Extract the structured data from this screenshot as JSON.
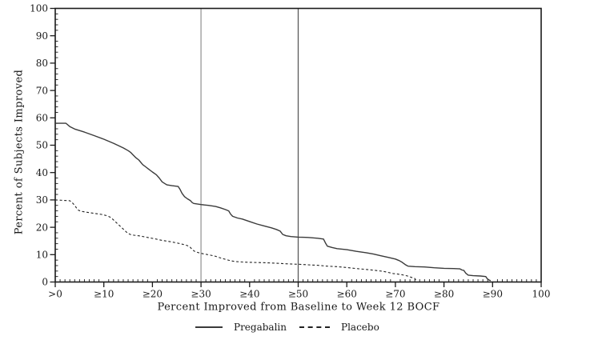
{
  "chart_data": {
    "type": "line",
    "title": "",
    "xlabel": "Percent Improved from Baseline to Week 12 BOCF",
    "ylabel": "Percent of Subjects Improved",
    "xlim": [
      0,
      100
    ],
    "ylim": [
      0,
      100
    ],
    "grid": false,
    "legend_position": "bottom",
    "x_minor_step": 1,
    "y_minor_step": 2,
    "axis_color": "#1a1a1a",
    "x_ticks": [
      {
        "value": 0,
        "label": ">0"
      },
      {
        "value": 10,
        "label": "≥10"
      },
      {
        "value": 20,
        "label": "≥20"
      },
      {
        "value": 30,
        "label": "≥30"
      },
      {
        "value": 40,
        "label": "≥40"
      },
      {
        "value": 50,
        "label": "≥50"
      },
      {
        "value": 60,
        "label": "≥60"
      },
      {
        "value": 70,
        "label": "≥70"
      },
      {
        "value": 80,
        "label": "≥80"
      },
      {
        "value": 90,
        "label": "≥90"
      },
      {
        "value": 100,
        "label": "100"
      }
    ],
    "y_ticks": [
      {
        "value": 0,
        "label": "0"
      },
      {
        "value": 10,
        "label": "10"
      },
      {
        "value": 20,
        "label": "20"
      },
      {
        "value": 30,
        "label": "30"
      },
      {
        "value": 40,
        "label": "40"
      },
      {
        "value": 50,
        "label": "50"
      },
      {
        "value": 60,
        "label": "60"
      },
      {
        "value": 70,
        "label": "70"
      },
      {
        "value": 80,
        "label": "80"
      },
      {
        "value": 90,
        "label": "90"
      },
      {
        "value": 100,
        "label": "100"
      }
    ],
    "reference_lines": [
      {
        "x": 30,
        "color": "#a6a6a6",
        "width": 1.5
      },
      {
        "x": 50,
        "color": "#5a5a5a",
        "width": 1.3
      }
    ],
    "series": [
      {
        "name": "Pregabalin",
        "style": "solid",
        "color": "#3a3a3a",
        "width": 1.4,
        "dash": "",
        "points": [
          [
            0,
            58
          ],
          [
            2.2,
            58
          ],
          [
            3,
            56.8
          ],
          [
            4,
            55.9
          ],
          [
            6,
            54.8
          ],
          [
            8,
            53.5
          ],
          [
            10,
            52.2
          ],
          [
            12,
            50.7
          ],
          [
            14,
            49
          ],
          [
            15,
            48
          ],
          [
            15.5,
            47.4
          ],
          [
            16,
            46.5
          ],
          [
            16.6,
            45.4
          ],
          [
            17.2,
            44.6
          ],
          [
            18,
            42.9
          ],
          [
            18.6,
            42.1
          ],
          [
            19.2,
            41.3
          ],
          [
            20,
            40.2
          ],
          [
            20.8,
            39.2
          ],
          [
            21.4,
            38
          ],
          [
            22,
            36.6
          ],
          [
            22.6,
            35.9
          ],
          [
            23,
            35.5
          ],
          [
            24,
            35.2
          ],
          [
            25.3,
            34.9
          ],
          [
            25.7,
            33.8
          ],
          [
            26.1,
            32.4
          ],
          [
            26.6,
            31.2
          ],
          [
            27.2,
            30.4
          ],
          [
            27.8,
            29.8
          ],
          [
            28.2,
            29
          ],
          [
            28.5,
            28.7
          ],
          [
            30,
            28.3
          ],
          [
            31.5,
            28
          ],
          [
            33,
            27.6
          ],
          [
            34,
            27.1
          ],
          [
            35,
            26.5
          ],
          [
            35.7,
            26
          ],
          [
            36.1,
            24.8
          ],
          [
            36.5,
            24
          ],
          [
            37.5,
            23.4
          ],
          [
            38.5,
            23
          ],
          [
            40,
            22.1
          ],
          [
            41.5,
            21.2
          ],
          [
            43,
            20.5
          ],
          [
            44.5,
            19.8
          ],
          [
            45.5,
            19.2
          ],
          [
            46.3,
            18.6
          ],
          [
            46.8,
            17.4
          ],
          [
            47.5,
            16.9
          ],
          [
            48.5,
            16.6
          ],
          [
            50,
            16.4
          ],
          [
            52,
            16.3
          ],
          [
            54,
            16
          ],
          [
            55.2,
            15.7
          ],
          [
            55.6,
            14.3
          ],
          [
            56,
            13.1
          ],
          [
            57,
            12.6
          ],
          [
            58,
            12.2
          ],
          [
            60,
            11.8
          ],
          [
            62,
            11.2
          ],
          [
            64,
            10.7
          ],
          [
            65.5,
            10.2
          ],
          [
            67,
            9.6
          ],
          [
            68.5,
            9
          ],
          [
            70,
            8.4
          ],
          [
            70.8,
            7.8
          ],
          [
            71.4,
            7.2
          ],
          [
            72,
            6.4
          ],
          [
            72.6,
            5.8
          ],
          [
            74,
            5.6
          ],
          [
            76,
            5.5
          ],
          [
            78,
            5.2
          ],
          [
            80,
            5
          ],
          [
            82,
            4.9
          ],
          [
            83.3,
            4.8
          ],
          [
            83.7,
            4.4
          ],
          [
            84.1,
            4.2
          ],
          [
            84.5,
            3.2
          ],
          [
            85,
            2.5
          ],
          [
            86,
            2.3
          ],
          [
            87.5,
            2.2
          ],
          [
            88.6,
            2
          ],
          [
            88.9,
            1.2
          ],
          [
            89.3,
            0.7
          ],
          [
            89.6,
            0.5
          ]
        ]
      },
      {
        "name": "Placebo",
        "style": "dashed",
        "color": "#222222",
        "width": 1.1,
        "dash": "3 2.6",
        "points": [
          [
            0,
            30
          ],
          [
            3,
            29.7
          ],
          [
            3.5,
            29
          ],
          [
            4,
            28
          ],
          [
            4.4,
            27
          ],
          [
            4.8,
            26.2
          ],
          [
            5.5,
            25.8
          ],
          [
            6.5,
            25.5
          ],
          [
            8,
            25.1
          ],
          [
            9.5,
            24.7
          ],
          [
            10.5,
            24.3
          ],
          [
            11.2,
            23.8
          ],
          [
            11.8,
            23
          ],
          [
            12.4,
            22
          ],
          [
            13,
            21
          ],
          [
            13.6,
            20
          ],
          [
            14.2,
            19
          ],
          [
            14.8,
            18
          ],
          [
            15.4,
            17.4
          ],
          [
            16.2,
            17.1
          ],
          [
            17.5,
            16.8
          ],
          [
            19,
            16.3
          ],
          [
            20.5,
            15.8
          ],
          [
            22,
            15.2
          ],
          [
            23.5,
            14.8
          ],
          [
            25,
            14.3
          ],
          [
            26.2,
            13.8
          ],
          [
            27.2,
            13.3
          ],
          [
            27.8,
            12.7
          ],
          [
            28.2,
            11.8
          ],
          [
            28.7,
            11.2
          ],
          [
            29.5,
            10.7
          ],
          [
            30.5,
            10.3
          ],
          [
            32,
            9.8
          ],
          [
            33,
            9.4
          ],
          [
            34,
            8.8
          ],
          [
            35,
            8.3
          ],
          [
            36,
            7.8
          ],
          [
            37,
            7.5
          ],
          [
            38.5,
            7.3
          ],
          [
            40,
            7.2
          ],
          [
            42,
            7.1
          ],
          [
            44,
            7
          ],
          [
            46,
            6.8
          ],
          [
            48,
            6.6
          ],
          [
            50,
            6.5
          ],
          [
            52,
            6.3
          ],
          [
            54,
            6.1
          ],
          [
            56,
            5.8
          ],
          [
            58,
            5.6
          ],
          [
            60,
            5.3
          ],
          [
            62,
            4.9
          ],
          [
            64,
            4.6
          ],
          [
            66,
            4.2
          ],
          [
            67.5,
            3.9
          ],
          [
            68.5,
            3.5
          ],
          [
            69.5,
            3.1
          ],
          [
            70.5,
            2.9
          ],
          [
            71.5,
            2.6
          ],
          [
            72.5,
            2.2
          ],
          [
            73.3,
            1.7
          ],
          [
            74,
            1.3
          ],
          [
            74.3,
            0.4
          ]
        ]
      }
    ]
  },
  "legend": {
    "items": [
      {
        "label": "Pregabalin",
        "style": "solid"
      },
      {
        "label": "Placebo",
        "style": "dashed"
      }
    ]
  }
}
